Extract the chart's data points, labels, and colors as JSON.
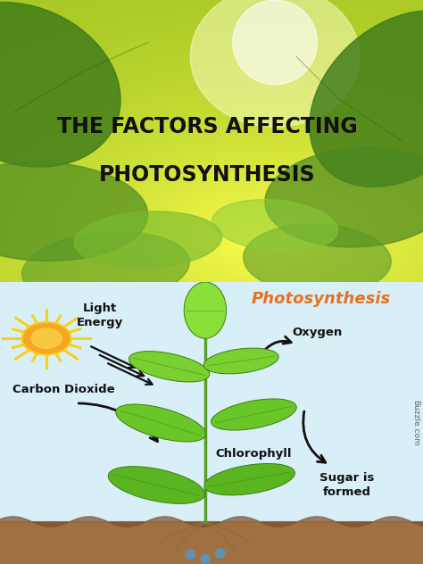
{
  "title_line1": "THE FACTORS AFFECTING",
  "title_line2": "PHOTOSYNTHESIS",
  "title_color": "#111111",
  "title_fontsize": 17,
  "photosynthesis_label": "Photosynthesis",
  "photosynthesis_color": "#E87020",
  "photosynthesis_fontsize": 13,
  "label_light": "Light\nEnergy",
  "label_co2": "Carbon Dioxide",
  "label_oxygen": "Oxygen",
  "label_chlorophyll": "Chlorophyll",
  "label_sugar": "Sugar is\nformed",
  "label_buzzle": "Buzzle.com",
  "bg_bottom": "#d8eff7",
  "sun_color_inner": "#F5A623",
  "sun_color_outer": "#F5D020",
  "font_label_size": 9.5,
  "arrow_color": "#111111",
  "stem_color": "#5a9e28",
  "leaf_color_lo": "#5ab520",
  "leaf_color_mid": "#6ac528",
  "leaf_color_hi": "#78d030",
  "soil_color": "#a07040",
  "soil_dark": "#7a5030",
  "water_color": "#5599cc",
  "top_bg_left": "#7ab828",
  "top_bg_center": "#e8f040",
  "top_bg_right": "#8ab828"
}
